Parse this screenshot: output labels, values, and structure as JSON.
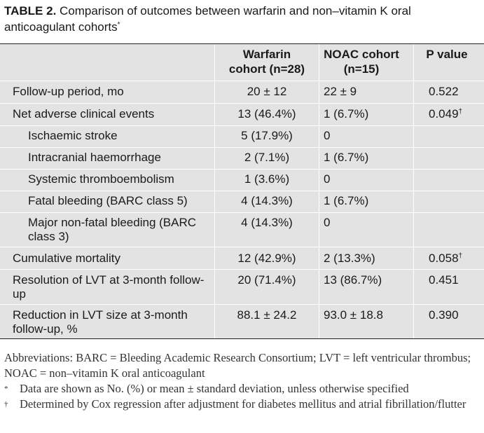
{
  "caption": {
    "prefix": "TABLE 2.",
    "text": " Comparison of outcomes between warfarin and non–vitamin K oral anticoagulant cohorts",
    "mark": "*"
  },
  "table": {
    "headers": {
      "warfarin_line1": "Warfarin",
      "warfarin_line2": "cohort (n=28)",
      "noac_line1": "NOAC cohort",
      "noac_line2": "(n=15)",
      "pvalue": "P value"
    },
    "rows": [
      {
        "label": "Follow-up period, mo",
        "warfarin": "20 ± 12",
        "noac": "22 ± 9",
        "p": "0.522",
        "p_mark": ""
      },
      {
        "label": "Net adverse clinical events",
        "warfarin": "13 (46.4%)",
        "noac": "1 (6.7%)",
        "p": "0.049",
        "p_mark": "†"
      },
      {
        "label": "Ischaemic stroke",
        "warfarin": "5 (17.9%)",
        "noac": "0",
        "p": "",
        "p_mark": ""
      },
      {
        "label": "Intracranial haemorrhage",
        "warfarin": "2 (7.1%)",
        "noac": "1 (6.7%)",
        "p": "",
        "p_mark": ""
      },
      {
        "label": "Systemic thromboembolism",
        "warfarin": "1 (3.6%)",
        "noac": "0",
        "p": "",
        "p_mark": ""
      },
      {
        "label": "Fatal bleeding (BARC class 5)",
        "warfarin": "4 (14.3%)",
        "noac": "1 (6.7%)",
        "p": "",
        "p_mark": ""
      },
      {
        "label": "Major non-fatal bleeding (BARC class 3)",
        "warfarin": "4 (14.3%)",
        "noac": "0",
        "p": "",
        "p_mark": ""
      },
      {
        "label": "Cumulative mortality",
        "warfarin": "12 (42.9%)",
        "noac": "2 (13.3%)",
        "p": "0.058",
        "p_mark": "†"
      },
      {
        "label": "Resolution of LVT at 3-month follow-up",
        "warfarin": "20 (71.4%)",
        "noac": "13 (86.7%)",
        "p": "0.451",
        "p_mark": ""
      },
      {
        "label": "Reduction in LVT size at 3-month follow-up, %",
        "warfarin": "88.1 ± 24.2",
        "noac": "93.0 ± 18.8",
        "p": "0.390",
        "p_mark": ""
      }
    ]
  },
  "footer": {
    "abbreviations": "Abbreviations: BARC = Bleeding Academic Research Consortium; LVT = left ventricular thrombus; NOAC = non–vitamin K oral anticoagulant",
    "note1_mark": "*",
    "note1": "Data are shown as No. (%) or mean ± standard deviation, unless otherwise specified",
    "note2_mark": "†",
    "note2": "Determined by Cox regression after adjustment for diabetes mellitus and atrial fibrillation/flutter"
  }
}
